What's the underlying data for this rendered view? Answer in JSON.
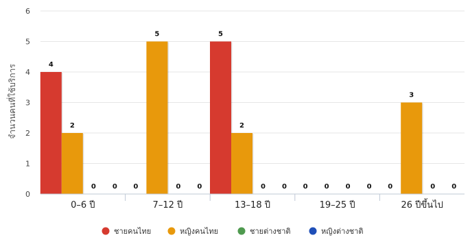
{
  "chart_data": {
    "type": "bar",
    "title": "",
    "xlabel": "",
    "ylabel": "จำนวนคนที่ใช้บริการ",
    "ylim": [
      0,
      6
    ],
    "yticks": [
      "0",
      "1",
      "2",
      "3",
      "4",
      "5",
      "6"
    ],
    "grid": true,
    "legend_position": "bottom",
    "categories": [
      "0–6 ปี",
      "7–12 ปี",
      "13–18 ปี",
      "19–25 ปี",
      "26 ปีขึ้นไป"
    ],
    "series": [
      {
        "name": "ชายคนไทย",
        "color": "#d63a2f",
        "values": [
          4,
          0,
          5,
          0,
          0
        ],
        "labels": [
          "4",
          "0",
          "5",
          "0",
          "0"
        ]
      },
      {
        "name": "หญิงคนไทย",
        "color": "#e8990c",
        "values": [
          2,
          5,
          2,
          0,
          3
        ],
        "labels": [
          "2",
          "5",
          "2",
          "0",
          "3"
        ]
      },
      {
        "name": "ชายต่างชาติ",
        "color": "#4f9a4f",
        "values": [
          0,
          0,
          0,
          0,
          0
        ],
        "labels": [
          "0",
          "0",
          "0",
          "0",
          "0"
        ]
      },
      {
        "name": "หญิงต่างชาติ",
        "color": "#1f4fb8",
        "values": [
          0,
          0,
          0,
          0,
          0
        ],
        "labels": [
          "0",
          "0",
          "0",
          "0",
          "0"
        ]
      }
    ]
  }
}
